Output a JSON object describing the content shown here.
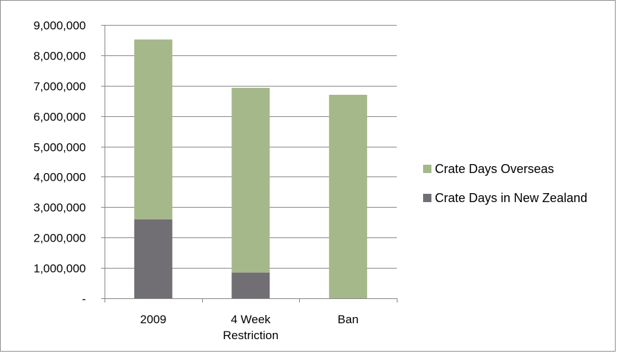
{
  "chart_data": {
    "type": "bar",
    "stacked": true,
    "categories": [
      "2009",
      "4 Week Restriction",
      "Ban"
    ],
    "category_label_lines": [
      [
        "2009"
      ],
      [
        "4 Week",
        "Restriction"
      ],
      [
        "Ban"
      ]
    ],
    "series": [
      {
        "name": "Crate Days in New Zealand",
        "values": [
          2600000,
          850000,
          0
        ],
        "color": "#716f74"
      },
      {
        "name": "Crate Days Overseas",
        "values": [
          5920000,
          6080000,
          6700000
        ],
        "color": "#a5b88a"
      }
    ],
    "ylim": [
      0,
      9000000
    ],
    "y_ticks": [
      0,
      1000000,
      2000000,
      3000000,
      4000000,
      5000000,
      6000000,
      7000000,
      8000000,
      9000000
    ],
    "y_tick_labels": [
      "-",
      "1,000,000",
      "2,000,000",
      "3,000,000",
      "4,000,000",
      "5,000,000",
      "6,000,000",
      "7,000,000",
      "8,000,000",
      "9,000,000"
    ],
    "title": "",
    "xlabel": "",
    "ylabel": "",
    "grid": true,
    "legend_position": "right",
    "legend_order": [
      "Crate Days Overseas",
      "Crate Days in New Zealand"
    ]
  }
}
